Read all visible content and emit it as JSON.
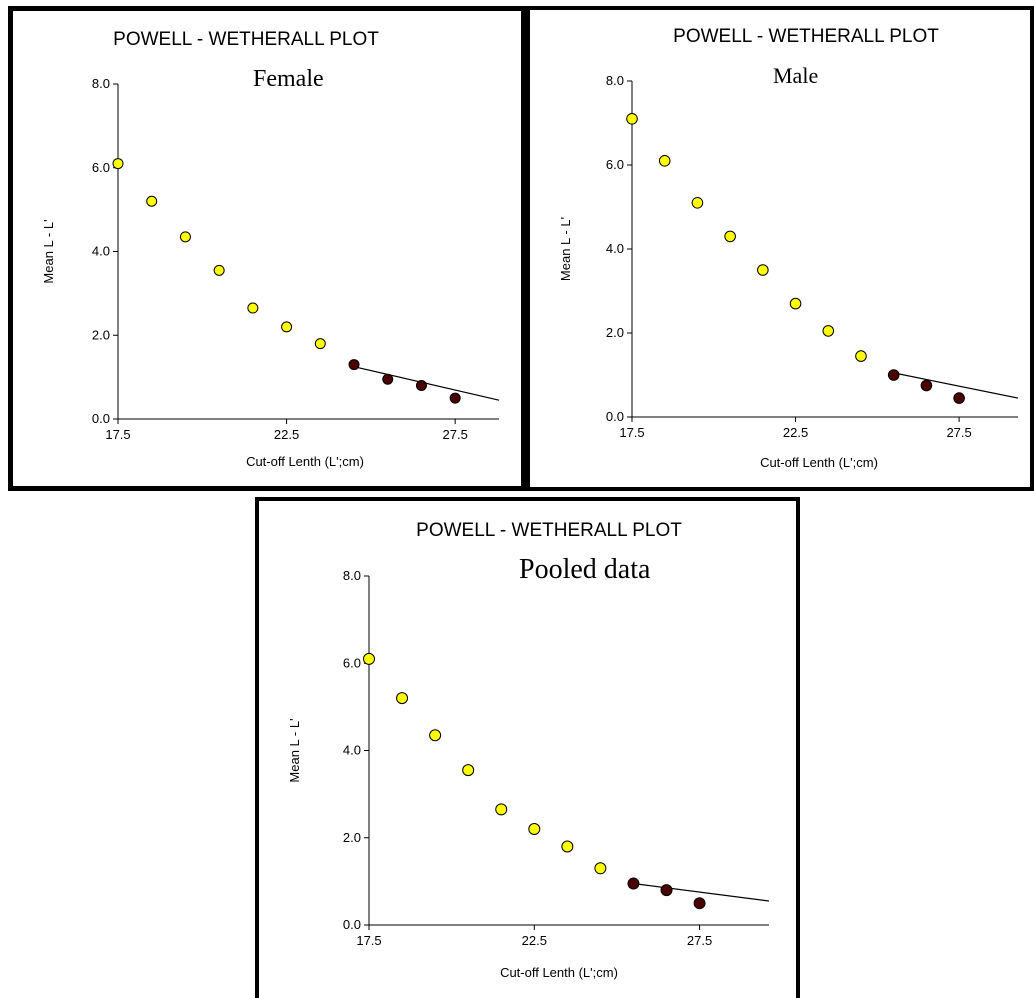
{
  "chart_data": [
    {
      "type": "scatter",
      "title": "POWELL - WETHERALL PLOT",
      "subtitle": "Female",
      "xlabel": "Cut-off Lenth (L';cm)",
      "ylabel": "Mean L - L'",
      "xlim": [
        17.5,
        28.8
      ],
      "ylim": [
        0,
        8
      ],
      "xticks": [
        "17.5",
        "22.5",
        "27.5"
      ],
      "yticks": [
        "0.0",
        "2.0",
        "4.0",
        "6.0",
        "8.0"
      ],
      "grid": false,
      "series": [
        {
          "role": "unused",
          "color": "#ffff00",
          "x": [
            17.5,
            18.5,
            19.5,
            20.5,
            21.5,
            22.5,
            23.5
          ],
          "y": [
            6.1,
            5.2,
            4.35,
            3.55,
            2.65,
            2.2,
            1.8
          ]
        },
        {
          "role": "regression",
          "color": "#4a0000",
          "x": [
            24.5,
            25.5,
            26.5,
            27.5
          ],
          "y": [
            1.3,
            0.95,
            0.8,
            0.5
          ]
        }
      ],
      "fit_line": {
        "x": [
          24.5,
          28.8
        ],
        "y": [
          1.25,
          0.45
        ]
      }
    },
    {
      "type": "scatter",
      "title": "POWELL - WETHERALL PLOT",
      "subtitle": "Male",
      "xlabel": "Cut-off Lenth (L';cm)",
      "ylabel": "Mean L - L'",
      "xlim": [
        17.5,
        29.3
      ],
      "ylim": [
        0,
        8
      ],
      "xticks": [
        "17.5",
        "22.5",
        "27.5"
      ],
      "yticks": [
        "0.0",
        "2.0",
        "4.0",
        "6.0",
        "8.0"
      ],
      "grid": false,
      "series": [
        {
          "role": "unused",
          "color": "#ffff00",
          "x": [
            17.5,
            18.5,
            19.5,
            20.5,
            21.5,
            22.5,
            23.5,
            24.5
          ],
          "y": [
            7.1,
            6.1,
            5.1,
            4.3,
            3.5,
            2.7,
            2.05,
            1.45
          ]
        },
        {
          "role": "regression",
          "color": "#4a0000",
          "x": [
            25.5,
            26.5,
            27.5
          ],
          "y": [
            1.0,
            0.75,
            0.45
          ]
        }
      ],
      "fit_line": {
        "x": [
          25.5,
          29.3
        ],
        "y": [
          1.05,
          0.45
        ]
      }
    },
    {
      "type": "scatter",
      "title": "POWELL - WETHERALL PLOT",
      "subtitle": "Pooled data",
      "xlabel": "Cut-off Lenth (L';cm)",
      "ylabel": "Mean L - L'",
      "xlim": [
        17.5,
        29.6
      ],
      "ylim": [
        0,
        8
      ],
      "xticks": [
        "17.5",
        "22.5",
        "27.5"
      ],
      "yticks": [
        "0.0",
        "2.0",
        "4.0",
        "6.0",
        "8.0"
      ],
      "grid": false,
      "series": [
        {
          "role": "unused",
          "color": "#ffff00",
          "x": [
            17.5,
            18.5,
            19.5,
            20.5,
            21.5,
            22.5,
            23.5,
            24.5
          ],
          "y": [
            6.1,
            5.2,
            4.35,
            3.55,
            2.65,
            2.2,
            1.8,
            1.3
          ]
        },
        {
          "role": "regression",
          "color": "#4a0000",
          "x": [
            25.5,
            26.5,
            27.5
          ],
          "y": [
            0.95,
            0.8,
            0.5
          ]
        }
      ],
      "fit_line": {
        "x": [
          25.5,
          29.6
        ],
        "y": [
          0.95,
          0.55
        ]
      }
    }
  ]
}
